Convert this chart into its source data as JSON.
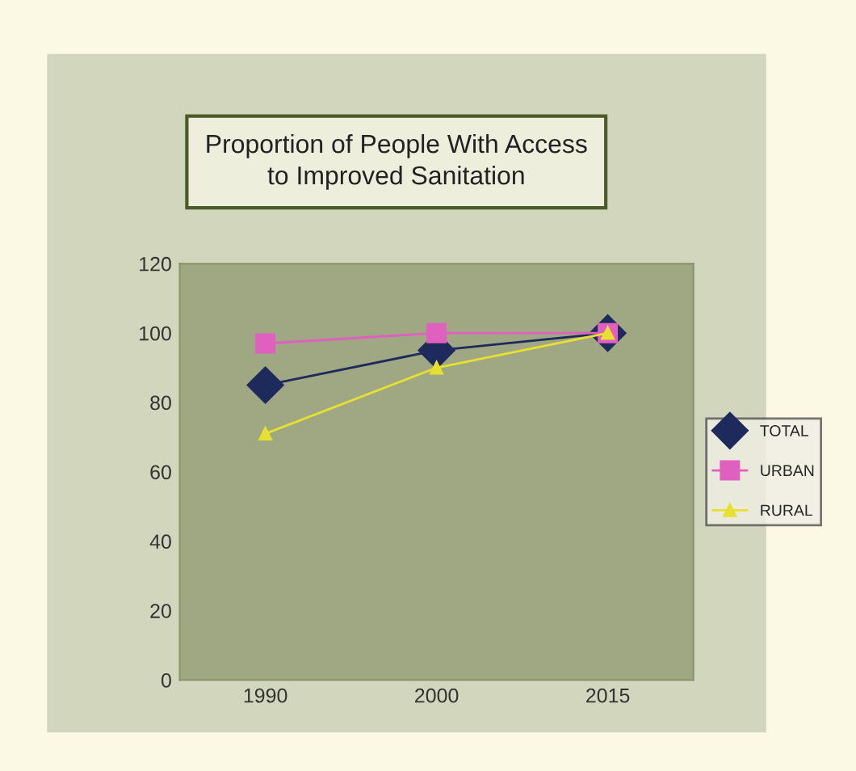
{
  "chart_data": {
    "type": "line",
    "title": "Proportion of People With Access\nto Improved Sanitation",
    "categories": [
      "1990",
      "2000",
      "2015"
    ],
    "series": [
      {
        "name": "TOTAL",
        "color": "#1f2a5c",
        "values": [
          85,
          95,
          100
        ],
        "marker": "diamond"
      },
      {
        "name": "URBAN",
        "color": "#e060c0",
        "values": [
          97,
          100,
          100
        ],
        "marker": "square"
      },
      {
        "name": "RURAL",
        "color": "#e8e030",
        "values": [
          71,
          90,
          100
        ],
        "marker": "triangle"
      }
    ],
    "ylim": [
      0,
      120
    ],
    "yticks": [
      0,
      20,
      40,
      60,
      80,
      100,
      120
    ],
    "grid": false,
    "legend": "right",
    "line_style": "solid"
  }
}
